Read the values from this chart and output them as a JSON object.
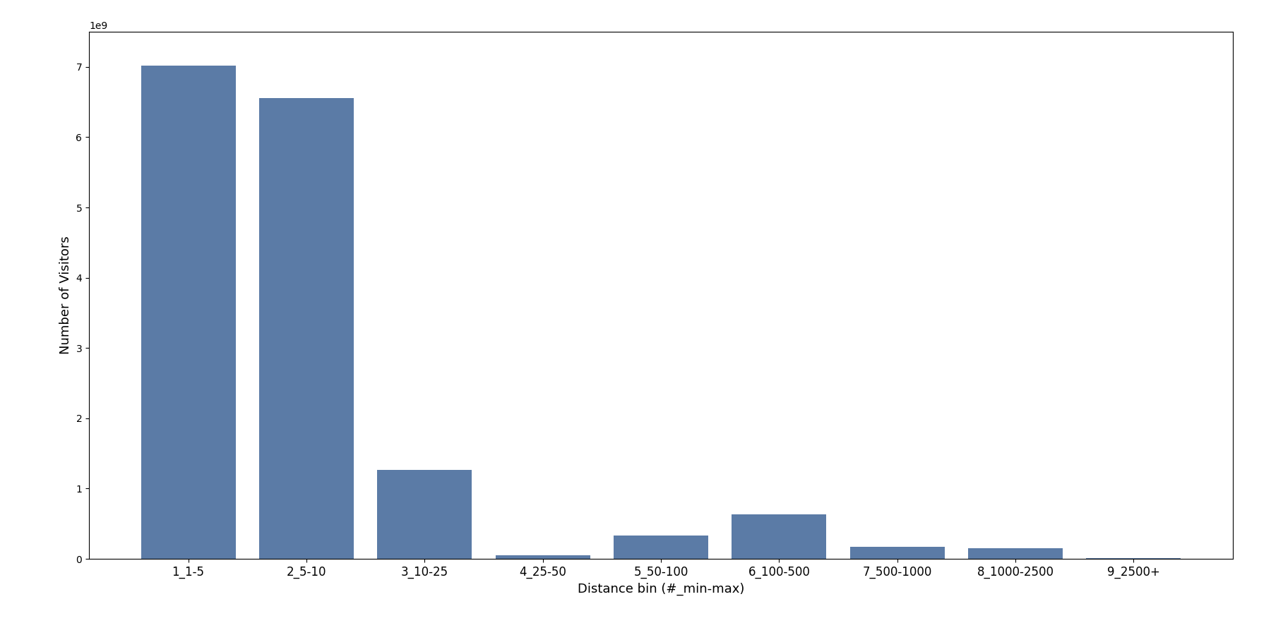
{
  "categories": [
    "1_1-5",
    "2_5-10",
    "3_10-25",
    "4_25-50",
    "5_50-100",
    "6_100-500",
    "7_500-1000",
    "8_1000-2500",
    "9_2500+"
  ],
  "values": [
    7020000000.0,
    6560000000.0,
    1270000000.0,
    52000000.0,
    330000000.0,
    630000000.0,
    170000000.0,
    150000000.0,
    8000000.0
  ],
  "bar_color": "#5b7ba6",
  "xlabel": "Distance bin (#_min-max)",
  "ylabel": "Number of Visitors",
  "ylim": [
    0,
    7500000000.0
  ],
  "figsize": [
    18.0,
    9.0
  ],
  "dpi": 100,
  "bar_width": 0.8,
  "tick_fontsize": 12,
  "label_fontsize": 13
}
